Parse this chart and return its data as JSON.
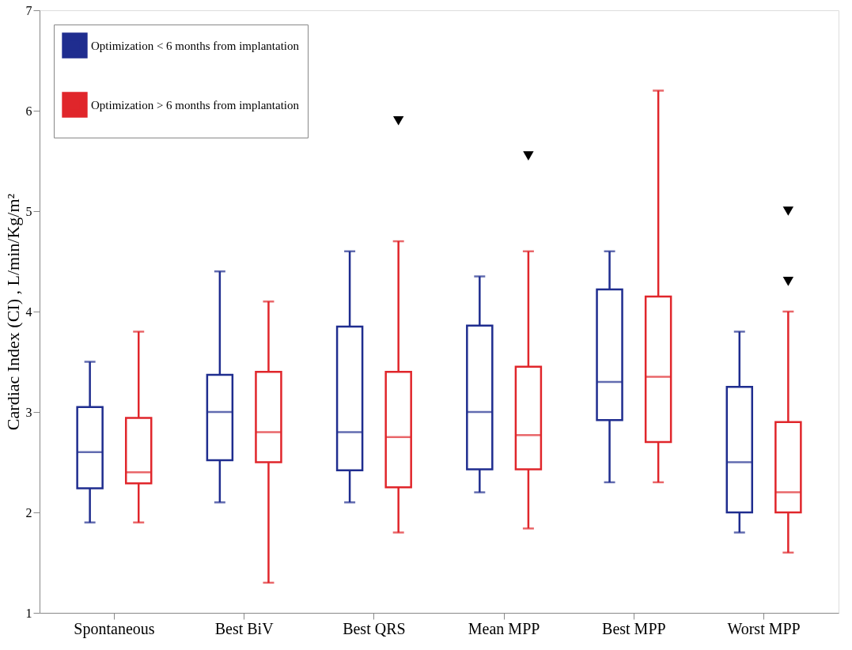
{
  "chart_data": {
    "type": "box",
    "ylabel": "Cardiac Index (CI) , L/min/Kg/m²",
    "categories": [
      "Spontaneous",
      "Best BiV",
      "Best QRS",
      "Mean MPP",
      "Best MPP",
      "Worst MPP"
    ],
    "ylim": [
      1,
      7
    ],
    "yticks": [
      1,
      2,
      3,
      4,
      5,
      6,
      7
    ],
    "grid": false,
    "legend": "top left",
    "marker": "triangle",
    "series": [
      {
        "name": "Optimization < 6 months from implantation",
        "color": "#1f2d8f",
        "boxes": [
          {
            "low": 1.9,
            "q1": 2.24,
            "median": 2.6,
            "q3": 3.05,
            "high": 3.5
          },
          {
            "low": 2.1,
            "q1": 2.52,
            "median": 3.0,
            "q3": 3.37,
            "high": 4.4
          },
          {
            "low": 2.1,
            "q1": 2.42,
            "median": 2.8,
            "q3": 3.85,
            "high": 4.6
          },
          {
            "low": 2.2,
            "q1": 2.43,
            "median": 3.0,
            "q3": 3.86,
            "high": 4.35
          },
          {
            "low": 2.3,
            "q1": 2.92,
            "median": 3.3,
            "q3": 4.22,
            "high": 4.6
          },
          {
            "low": 1.8,
            "q1": 2.0,
            "median": 2.5,
            "q3": 3.25,
            "high": 3.8
          }
        ]
      },
      {
        "name": "Optimization > 6 months from implantation",
        "color": "#e0262b",
        "boxes": [
          {
            "low": 1.9,
            "q1": 2.29,
            "median": 2.4,
            "q3": 2.94,
            "high": 3.8
          },
          {
            "low": 1.3,
            "q1": 2.5,
            "median": 2.8,
            "q3": 3.4,
            "high": 4.1
          },
          {
            "low": 1.8,
            "q1": 2.25,
            "median": 2.75,
            "q3": 3.4,
            "high": 4.7,
            "outliers": [
              5.9
            ]
          },
          {
            "low": 1.84,
            "q1": 2.43,
            "median": 2.77,
            "q3": 3.45,
            "high": 4.6,
            "outliers": [
              5.55
            ]
          },
          {
            "low": 2.3,
            "q1": 2.7,
            "median": 3.35,
            "q3": 4.15,
            "high": 6.2
          },
          {
            "low": 1.6,
            "q1": 2.0,
            "median": 2.2,
            "q3": 2.9,
            "high": 4.0,
            "outliers": [
              5.0,
              4.3
            ]
          }
        ]
      }
    ]
  }
}
